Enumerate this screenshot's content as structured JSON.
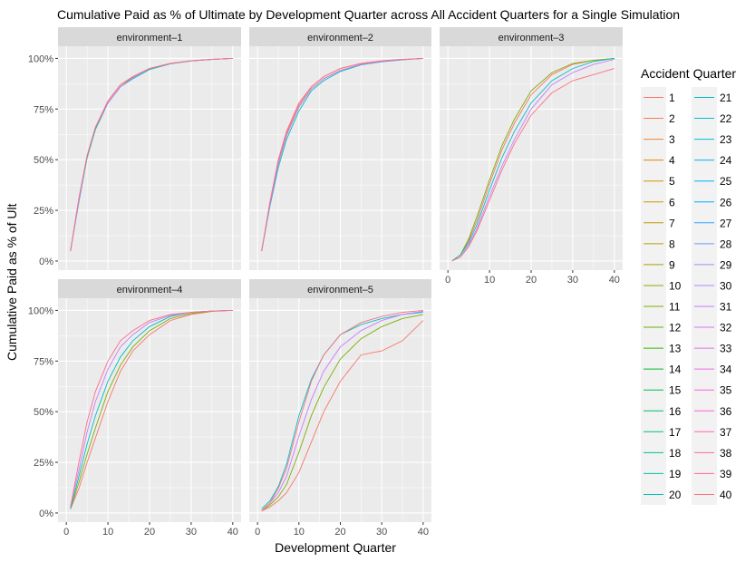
{
  "chart_data": {
    "type": "line",
    "title": "Cumulative Paid as % of Ultimate by Development Quarter across All Accident Quarters for a Single Simulation",
    "xlabel": "Development Quarter",
    "ylabel": "Cumulative Paid as % of Ult",
    "xlim": [
      0,
      40
    ],
    "ylim": [
      0,
      100
    ],
    "x_ticks": [
      "0",
      "10",
      "20",
      "30",
      "40"
    ],
    "y_ticks": [
      "0%",
      "25%",
      "50%",
      "75%",
      "100%"
    ],
    "grid": true,
    "legend": {
      "title": "Accident Quarter",
      "position": "right",
      "entries": [
        "1",
        "2",
        "3",
        "4",
        "5",
        "6",
        "7",
        "8",
        "9",
        "10",
        "11",
        "12",
        "13",
        "14",
        "15",
        "16",
        "17",
        "18",
        "19",
        "20",
        "21",
        "22",
        "23",
        "24",
        "25",
        "26",
        "27",
        "28",
        "29",
        "30",
        "31",
        "32",
        "33",
        "34",
        "35",
        "36",
        "37",
        "38",
        "39",
        "40"
      ]
    },
    "x": [
      1,
      3,
      5,
      7,
      10,
      13,
      16,
      20,
      25,
      30,
      35,
      40
    ],
    "facets": [
      {
        "label": "environment–1",
        "series": [
          {
            "accident_quarter": 1,
            "values": [
              5,
              30,
              52,
              66,
              79,
              87,
              91,
              95,
              97.5,
              98.8,
              99.5,
              100
            ]
          },
          {
            "accident_quarter": 11,
            "values": [
              5,
              30,
              51,
              65,
              78,
              86,
              91,
              95,
              97.5,
              98.8,
              99.5,
              100
            ]
          },
          {
            "accident_quarter": 21,
            "values": [
              5,
              29,
              51,
              65,
              78,
              86,
              90,
              94.5,
              97.3,
              98.7,
              99.5,
              100
            ]
          },
          {
            "accident_quarter": 31,
            "values": [
              5,
              30,
              52,
              66,
              78,
              86,
              90.5,
              95,
              97.4,
              98.8,
              99.5,
              100
            ]
          },
          {
            "accident_quarter": 40,
            "values": [
              5,
              31,
              52,
              66,
              79,
              87,
              91,
              95,
              97.5,
              98.8,
              99.5,
              100
            ]
          }
        ]
      },
      {
        "label": "environment–2",
        "series": [
          {
            "accident_quarter": 1,
            "values": [
              5,
              29,
              49,
              63,
              77,
              86,
              91,
              95,
              97.5,
              98.8,
              99.5,
              100
            ]
          },
          {
            "accident_quarter": 11,
            "values": [
              5,
              28,
              48,
              62,
              76,
              85,
              90,
              94,
              97,
              98.5,
              99.4,
              100
            ]
          },
          {
            "accident_quarter": 21,
            "values": [
              5,
              27,
              46,
              60,
              74,
              84,
              89,
              93.5,
              96.8,
              98.3,
              99.3,
              100
            ]
          },
          {
            "accident_quarter": 31,
            "values": [
              5,
              28,
              48,
              62,
              76,
              85,
              90,
              94,
              97,
              98.5,
              99.4,
              100
            ]
          },
          {
            "accident_quarter": 40,
            "values": [
              5,
              29,
              50,
              64,
              78,
              86,
              91,
              95,
              97.5,
              98.8,
              99.5,
              100
            ]
          }
        ]
      },
      {
        "label": "environment–3",
        "series": [
          {
            "accident_quarter": 1,
            "values": [
              0,
              3,
              10,
              20,
              38,
              55,
              68,
              82,
              92,
              97,
              99,
              100
            ]
          },
          {
            "accident_quarter": 11,
            "values": [
              0,
              3,
              11,
              22,
              40,
              57,
              70,
              84,
              93,
              97.5,
              99,
              100
            ]
          },
          {
            "accident_quarter": 21,
            "values": [
              0,
              3,
              9,
              18,
              35,
              51,
              64,
              78,
              89,
              95,
              98.5,
              100
            ]
          },
          {
            "accident_quarter": 31,
            "values": [
              0,
              2,
              8,
              16,
              32,
              47,
              60,
              75,
              87,
              93,
              97,
              99.5
            ]
          },
          {
            "accident_quarter": 40,
            "values": [
              0,
              2,
              7,
              15,
              30,
              45,
              58,
              72,
              83,
              89,
              92,
              95
            ]
          }
        ]
      },
      {
        "label": "environment–4",
        "series": [
          {
            "accident_quarter": 1,
            "values": [
              2,
              12,
              25,
              37,
              55,
              70,
              80,
              88,
              95,
              98,
              99.5,
              100
            ]
          },
          {
            "accident_quarter": 11,
            "values": [
              2,
              15,
              29,
              42,
              60,
              73,
              82,
              90,
              96,
              98.5,
              99.6,
              100
            ]
          },
          {
            "accident_quarter": 21,
            "values": [
              2,
              18,
              34,
              48,
              65,
              77,
              85,
              92,
              97,
              99,
              99.7,
              100
            ]
          },
          {
            "accident_quarter": 31,
            "values": [
              3,
              21,
              40,
              55,
              71,
              82,
              88,
              94,
              97.5,
              99,
              99.7,
              100
            ]
          },
          {
            "accident_quarter": 40,
            "values": [
              3,
              25,
              45,
              60,
              75,
              85,
              90,
              95,
              98,
              99,
              99.7,
              100
            ]
          }
        ]
      },
      {
        "label": "environment–5",
        "series": [
          {
            "accident_quarter": 1,
            "values": [
              1,
              3,
              6,
              10,
              20,
              35,
              50,
              65,
              78,
              80,
              85,
              95
            ]
          },
          {
            "accident_quarter": 11,
            "values": [
              1,
              4,
              8,
              14,
              30,
              48,
              62,
              76,
              86,
              92,
              96,
              98
            ]
          },
          {
            "accident_quarter": 21,
            "values": [
              2,
              6,
              13,
              24,
              48,
              66,
              78,
              88,
              93,
              96,
              98,
              99
            ]
          },
          {
            "accident_quarter": 31,
            "values": [
              1,
              5,
              10,
              18,
              38,
              56,
              70,
              82,
              90,
              95,
              98,
              99.5
            ]
          },
          {
            "accident_quarter": 40,
            "values": [
              1,
              5,
              12,
              22,
              45,
              65,
              78,
              88,
              94,
              97,
              99,
              100
            ]
          }
        ]
      }
    ]
  }
}
